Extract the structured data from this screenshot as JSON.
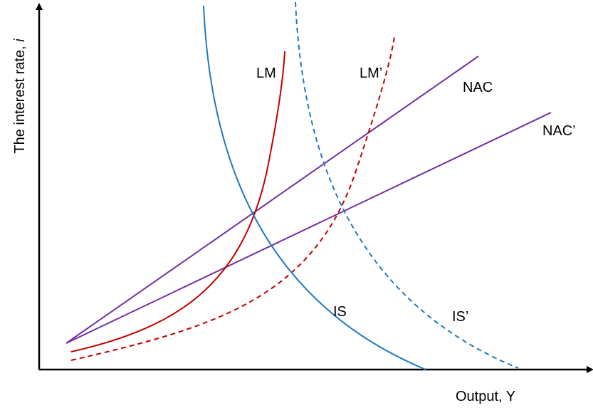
{
  "axes": {
    "y_label_prefix": "The interest rate, ",
    "y_label_var": "i",
    "x_label": "Output, Y"
  },
  "curves": {
    "is": "IS",
    "is_prime": "IS’",
    "lm": "LM",
    "lm_prime": "LM’",
    "nac": "NAC",
    "nac_prime": "NAC’"
  },
  "colors": {
    "axis": "#000000",
    "is": "#1f78c1",
    "lm": "#c00000",
    "nac": "#7030a0"
  }
}
